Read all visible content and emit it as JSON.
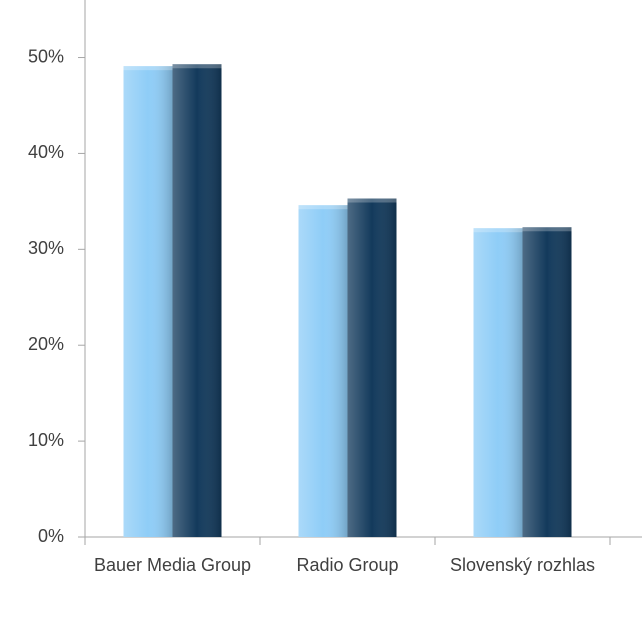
{
  "chart_data": {
    "type": "bar",
    "categories": [
      "Bauer Media Group",
      "Radio Group",
      "Slovenský rozhlas"
    ],
    "series": [
      {
        "color": "#8fcdf7",
        "values": [
          49.1,
          34.6,
          32.2
        ]
      },
      {
        "color": "#133a5c",
        "values": [
          49.3,
          35.3,
          32.3
        ]
      }
    ],
    "ylim": [
      0,
      56
    ],
    "yticks": [
      {
        "value": 0,
        "label": "0%"
      },
      {
        "value": 10,
        "label": "10%"
      },
      {
        "value": 20,
        "label": "20%"
      },
      {
        "value": 30,
        "label": "30%"
      },
      {
        "value": 40,
        "label": "40%"
      },
      {
        "value": 50,
        "label": "50%"
      }
    ],
    "grid": false
  }
}
